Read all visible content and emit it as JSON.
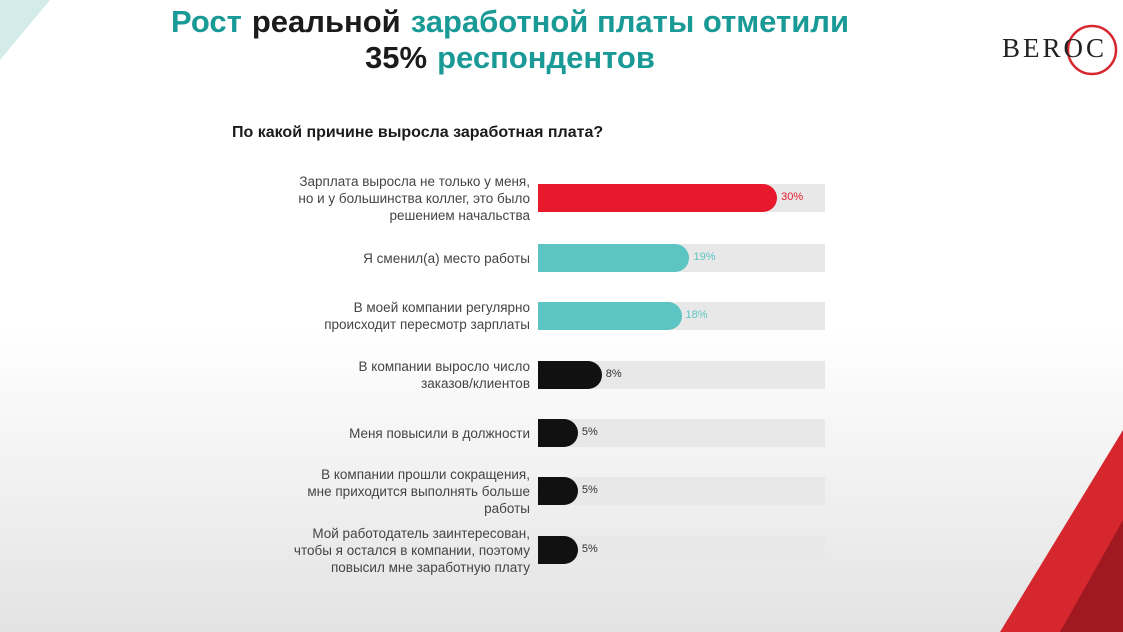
{
  "logo": "BEROC",
  "chart_data": {
    "type": "bar",
    "orientation": "horizontal",
    "title": [
      [
        {
          "text": "Рост",
          "color": "#1a9a96"
        },
        {
          "text": "реальной",
          "color": "#1b1b1b"
        },
        {
          "text": "заработной платы отметили",
          "color": "#1a9a96"
        }
      ],
      [
        {
          "text": "35%",
          "color": "#1b1b1b"
        },
        {
          "text": "респондентов",
          "color": "#1a9a96"
        }
      ]
    ],
    "subtitle": "По какой причине выросла заработная плата?",
    "categories": [
      "Зарплата выросла не только у меня,\nно и у большинства коллег, это было\nрешением начальства",
      "Я сменил(а) место работы",
      "В моей компании регулярно\nпроисходит пересмотр зарплаты",
      "В компании выросло число\nзаказов/клиентов",
      "Меня повысили в должности",
      "В компании прошли сокращения,\nмне приходится выполнять больше\nработы",
      "Мой работодатель заинтересован,\nчтобы я остался в компании, поэтому\nповысил мне заработную плату"
    ],
    "values": [
      30,
      19,
      18,
      8,
      5,
      5,
      5
    ],
    "value_labels": [
      "30%",
      "19%",
      "18%",
      "8%",
      "5%",
      "5%",
      "5%"
    ],
    "colors": [
      "#e8192c",
      "#5cc4c2",
      "#5cc4c2",
      "#111111",
      "#111111",
      "#111111",
      "#111111"
    ],
    "track_color": "#e8e8e8",
    "xlim": [
      0,
      36
    ]
  }
}
